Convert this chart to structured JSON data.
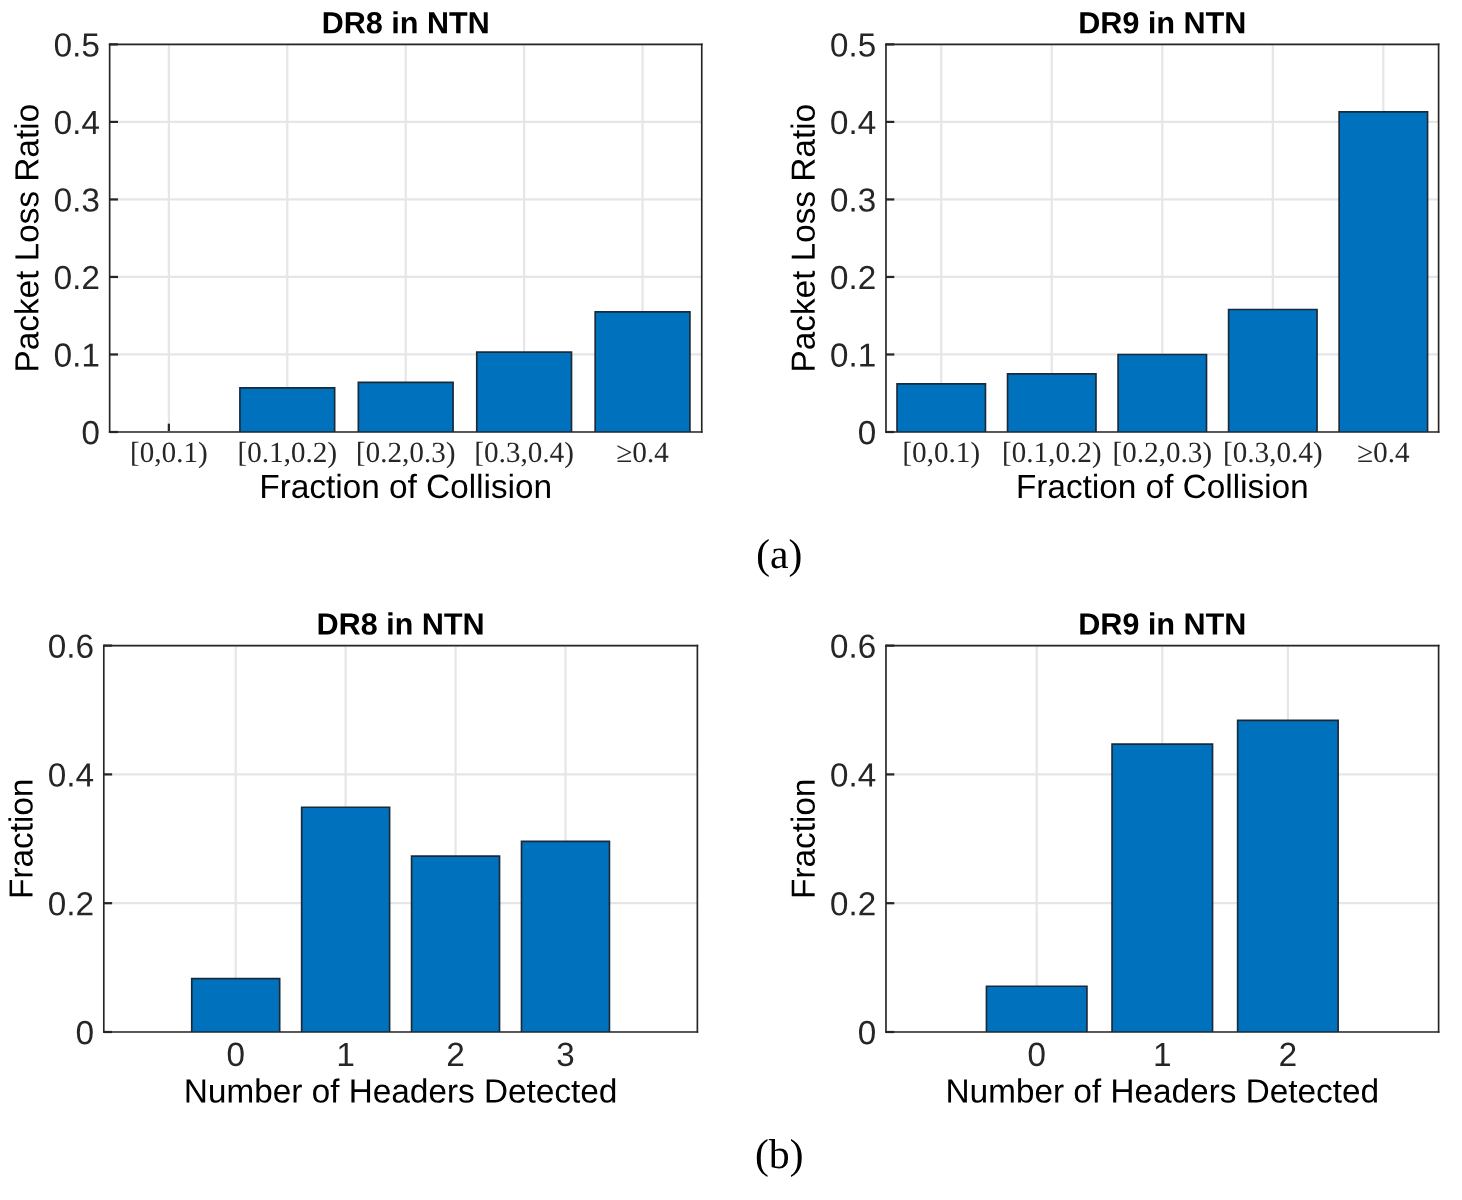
{
  "chart_data": [
    {
      "type": "bar",
      "title": "DR8 in NTN",
      "xlabel": "Fraction of Collision",
      "ylabel": "Packet Loss Ratio",
      "categories": [
        "[0,0.1)",
        "[0.1,0.2)",
        "[0.2,0.3)",
        "[0.3,0.4)",
        "≥0.4"
      ],
      "values": [
        0,
        0.057,
        0.064,
        0.103,
        0.155
      ],
      "color": "#0072bd",
      "ylim": [
        0,
        0.5
      ],
      "yticks": [
        0,
        0.1,
        0.2,
        0.3,
        0.4,
        0.5
      ],
      "grid": true,
      "annotations": [
        "(a)"
      ]
    },
    {
      "type": "bar",
      "title": "DR9 in NTN",
      "xlabel": "Fraction of Collision",
      "ylabel": "Packet Loss Ratio",
      "categories": [
        "[0,0.1)",
        "[0.1,0.2)",
        "[0.2,0.3)",
        "[0.3,0.4)",
        "≥0.4"
      ],
      "values": [
        0.062,
        0.075,
        0.1,
        0.158,
        0.413
      ],
      "color": "#0072bd",
      "ylim": [
        0,
        0.5
      ],
      "yticks": [
        0,
        0.1,
        0.2,
        0.3,
        0.4,
        0.5
      ],
      "grid": true
    },
    {
      "type": "bar",
      "title": "DR8 in NTN",
      "xlabel": "Number of Headers Detected",
      "ylabel": "Fraction",
      "x": [
        0,
        1,
        2,
        3
      ],
      "values": [
        0.083,
        0.349,
        0.273,
        0.296
      ],
      "color": "#0072bd",
      "xlim": [
        -1.2,
        4.2
      ],
      "xticks": [
        0,
        1,
        2,
        3
      ],
      "ylim": [
        0,
        0.6
      ],
      "yticks": [
        0,
        0.2,
        0.4,
        0.6
      ],
      "grid": true,
      "annotations": [
        "(b)"
      ]
    },
    {
      "type": "bar",
      "title": "DR9 in NTN",
      "xlabel": "Number of Headers Detected",
      "ylabel": "Fraction",
      "x": [
        0,
        1,
        2
      ],
      "values": [
        0.071,
        0.447,
        0.484
      ],
      "color": "#0072bd",
      "xlim": [
        -1.2,
        3.2
      ],
      "xticks": [
        0,
        1,
        2
      ],
      "ylim": [
        0,
        0.6
      ],
      "yticks": [
        0,
        0.2,
        0.4,
        0.6
      ],
      "grid": true
    }
  ]
}
